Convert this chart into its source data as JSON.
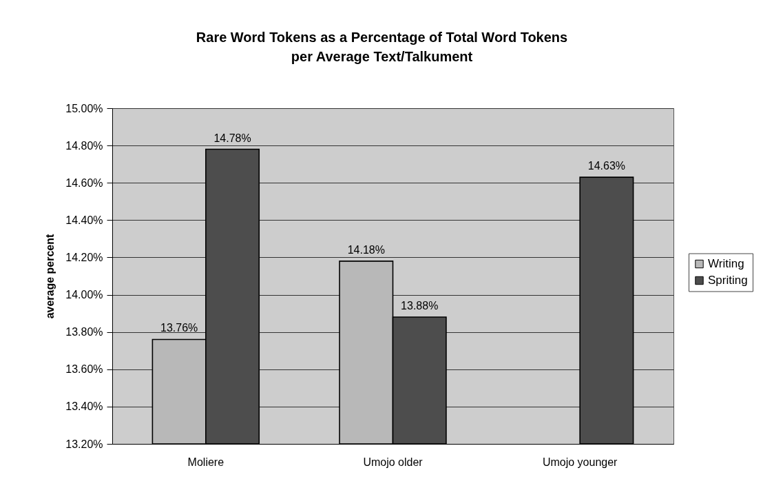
{
  "chart_data": {
    "type": "bar",
    "title": "Rare Word Tokens as a Percentage of Total Word Tokens\nper Average Text/Talkument",
    "ylabel": "average percent",
    "categories": [
      "Moliere",
      "Umojo older",
      "Umojo younger"
    ],
    "series": [
      {
        "name": "Writing",
        "color": "#b8b8b8",
        "values": [
          13.76,
          14.18,
          null
        ],
        "value_labels": [
          "13.76%",
          "14.18%",
          null
        ]
      },
      {
        "name": "Spriting",
        "color": "#4d4d4d",
        "values": [
          14.78,
          13.88,
          14.63
        ],
        "value_labels": [
          "14.78%",
          "13.88%",
          "14.63%"
        ]
      }
    ],
    "ylim": [
      13.2,
      15.0
    ],
    "yticks": [
      {
        "value": 13.2,
        "label": "13.20%"
      },
      {
        "value": 13.4,
        "label": "13.40%"
      },
      {
        "value": 13.6,
        "label": "13.60%"
      },
      {
        "value": 13.8,
        "label": "13.80%"
      },
      {
        "value": 14.0,
        "label": "14.00%"
      },
      {
        "value": 14.2,
        "label": "14.20%"
      },
      {
        "value": 14.4,
        "label": "14.40%"
      },
      {
        "value": 14.6,
        "label": "14.60%"
      },
      {
        "value": 14.8,
        "label": "14.80%"
      },
      {
        "value": 15.0,
        "label": "15.00%"
      }
    ],
    "grid": "y",
    "legend": "right"
  }
}
